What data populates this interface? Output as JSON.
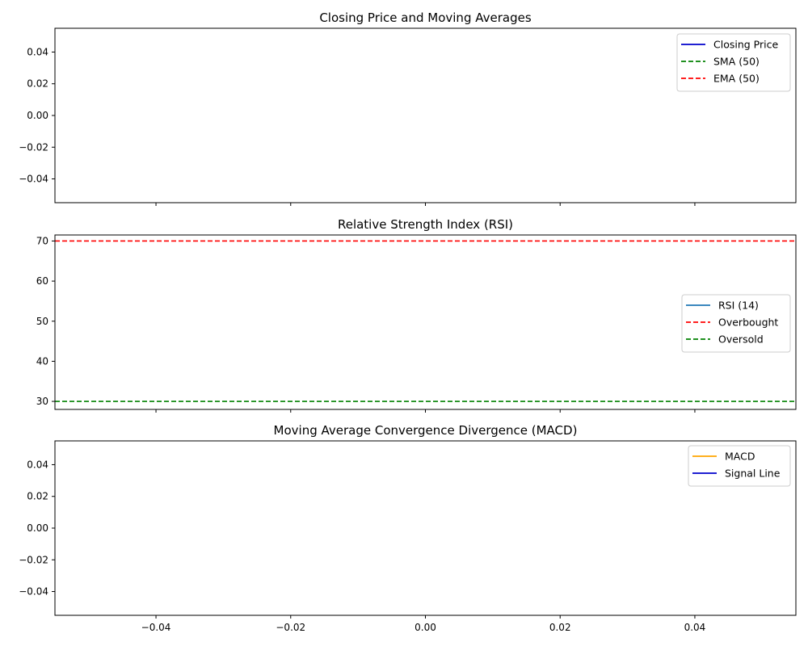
{
  "chart_data": [
    {
      "type": "line",
      "title": "Closing Price and Moving Averages",
      "xlabel": "",
      "ylabel": "",
      "xlim": [
        -0.055,
        0.055
      ],
      "ylim": [
        -0.055,
        0.055
      ],
      "y_ticks": [
        0.04,
        0.02,
        0.0,
        -0.02,
        -0.04
      ],
      "y_tick_labels": [
        "0.04",
        "0.02",
        "0.00",
        "−0.02",
        "−0.04"
      ],
      "x_ticks": [
        -0.04,
        -0.02,
        0.0,
        0.02,
        0.04
      ],
      "x_tick_labels_shown": false,
      "grid": false,
      "legend_position": "top-right",
      "series": [
        {
          "name": "Closing Price",
          "color": "#0000cc",
          "style": "solid",
          "x": [],
          "values": []
        },
        {
          "name": "SMA (50)",
          "color": "#008000",
          "style": "dashed",
          "x": [],
          "values": []
        },
        {
          "name": "EMA (50)",
          "color": "#ff0000",
          "style": "dashed",
          "x": [],
          "values": []
        }
      ]
    },
    {
      "type": "line",
      "title": "Relative Strength Index (RSI)",
      "xlabel": "",
      "ylabel": "",
      "xlim": [
        -0.055,
        0.055
      ],
      "ylim": [
        28,
        71.5
      ],
      "y_ticks": [
        70,
        60,
        50,
        40,
        30
      ],
      "y_tick_labels": [
        "70",
        "60",
        "50",
        "40",
        "30"
      ],
      "x_ticks": [
        -0.04,
        -0.02,
        0.0,
        0.02,
        0.04
      ],
      "x_tick_labels_shown": false,
      "grid": false,
      "legend_position": "center-right",
      "series": [
        {
          "name": "RSI (14)",
          "color": "#1f77b4",
          "style": "solid",
          "x": [],
          "values": []
        },
        {
          "name": "Overbought",
          "color": "#ff0000",
          "style": "dashed",
          "hline": 70
        },
        {
          "name": "Oversold",
          "color": "#008000",
          "style": "dashed",
          "hline": 30
        }
      ]
    },
    {
      "type": "line",
      "title": "Moving Average Convergence Divergence (MACD)",
      "xlabel": "",
      "ylabel": "",
      "xlim": [
        -0.055,
        0.055
      ],
      "ylim": [
        -0.055,
        0.055
      ],
      "y_ticks": [
        0.04,
        0.02,
        0.0,
        -0.02,
        -0.04
      ],
      "y_tick_labels": [
        "0.04",
        "0.02",
        "0.00",
        "−0.02",
        "−0.04"
      ],
      "x_ticks": [
        -0.04,
        -0.02,
        0.0,
        0.02,
        0.04
      ],
      "x_tick_labels": [
        "−0.04",
        "−0.02",
        "0.00",
        "0.02",
        "0.04"
      ],
      "x_tick_labels_shown": true,
      "grid": false,
      "legend_position": "top-right",
      "series": [
        {
          "name": "MACD",
          "color": "#ffa500",
          "style": "solid",
          "x": [],
          "values": []
        },
        {
          "name": "Signal Line",
          "color": "#0000cc",
          "style": "solid",
          "x": [],
          "values": []
        }
      ]
    }
  ]
}
